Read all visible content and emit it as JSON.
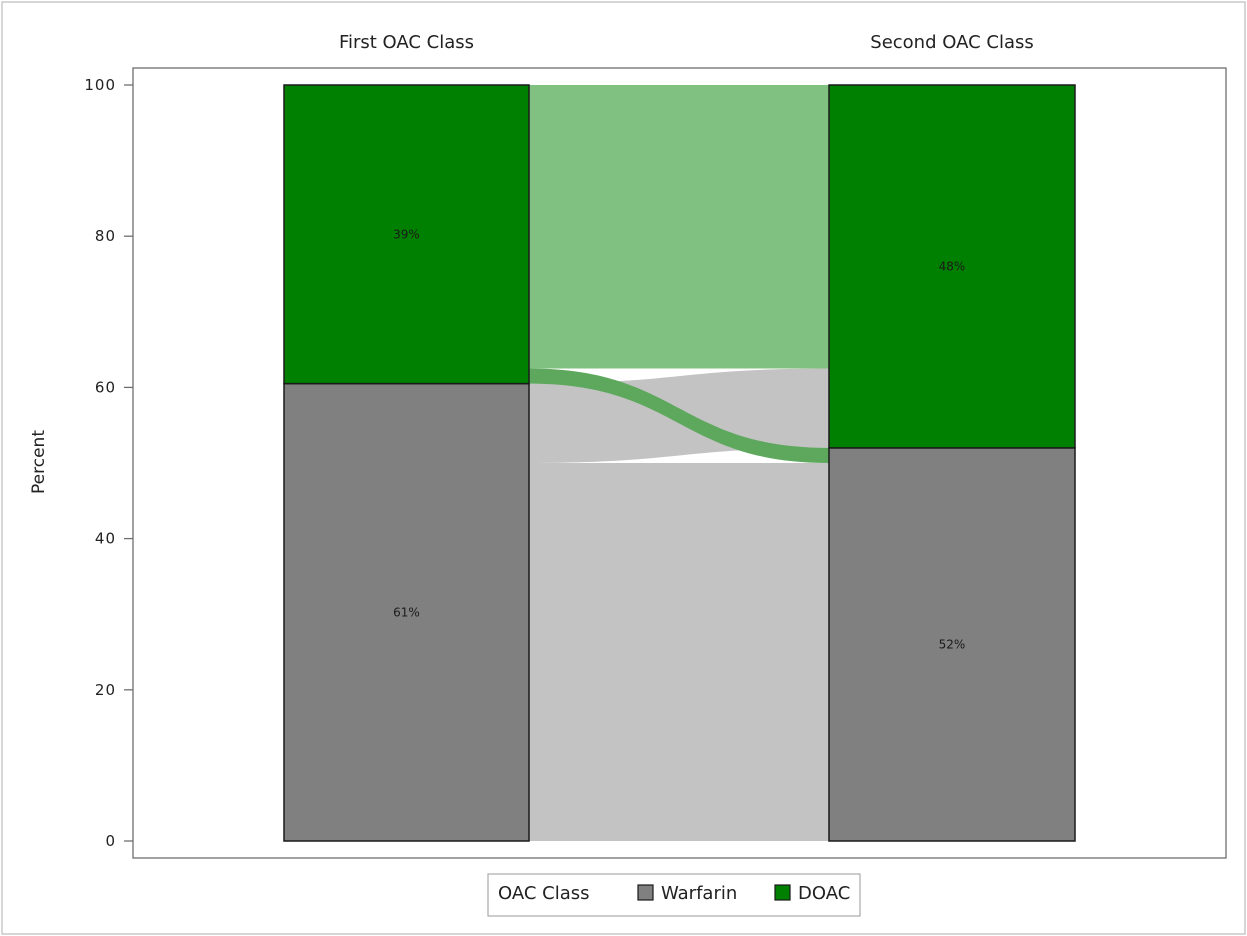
{
  "chart_data": {
    "type": "alluvial",
    "stages": [
      "First OAC Class",
      "Second OAC Class"
    ],
    "ylabel": "Percent",
    "ylim": [
      0,
      100
    ],
    "yticks": [
      0,
      20,
      40,
      60,
      80,
      100
    ],
    "grid": false,
    "legend": {
      "title": "OAC Class",
      "placement": "bottom",
      "items": [
        {
          "name": "Warfarin",
          "color": "#808080"
        },
        {
          "name": "DOAC",
          "color": "#008000"
        }
      ]
    },
    "categories": [
      "Warfarin",
      "DOAC"
    ],
    "colors": {
      "Warfarin": "#808080",
      "DOAC": "#008000",
      "flow_warfarin": "#c3c3c3",
      "flow_doac": "#80c080",
      "flow_switch_doac": "#5ea85e"
    },
    "first_stage": [
      {
        "category": "Warfarin",
        "value": 60.5,
        "label": "61%"
      },
      {
        "category": "DOAC",
        "value": 39.5,
        "label": "39%"
      }
    ],
    "second_stage": [
      {
        "category": "Warfarin",
        "value": 52,
        "label": "52%"
      },
      {
        "category": "DOAC",
        "value": 48,
        "label": "48%"
      }
    ],
    "flows": [
      {
        "from": "Warfarin",
        "to": "Warfarin",
        "value": 50
      },
      {
        "from": "Warfarin",
        "to": "DOAC",
        "value": 10.5
      },
      {
        "from": "DOAC",
        "to": "Warfarin",
        "value": 2
      },
      {
        "from": "DOAC",
        "to": "DOAC",
        "value": 37.5
      }
    ]
  }
}
